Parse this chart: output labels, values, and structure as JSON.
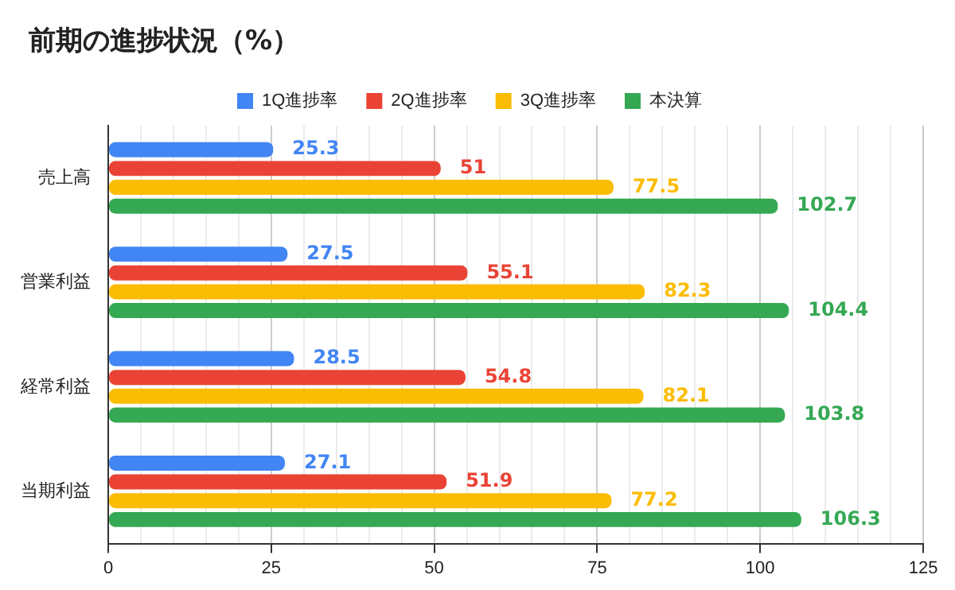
{
  "chart_data": {
    "type": "bar",
    "orientation": "horizontal",
    "title": "前期の進捗状況（%）",
    "categories": [
      "売上高",
      "営業利益",
      "経常利益",
      "当期利益"
    ],
    "series": [
      {
        "name": "1Q進捗率",
        "color": "#4285f4",
        "values": [
          25.3,
          27.5,
          28.5,
          27.1
        ]
      },
      {
        "name": "2Q進捗率",
        "color": "#ea4335",
        "values": [
          51,
          55.1,
          54.8,
          51.9
        ]
      },
      {
        "name": "3Q進捗率",
        "color": "#fbbc04",
        "values": [
          77.5,
          82.3,
          82.1,
          77.2
        ]
      },
      {
        "name": "本決算",
        "color": "#34a853",
        "values": [
          102.7,
          104.4,
          103.8,
          106.3
        ]
      }
    ],
    "xlim": [
      0,
      125
    ],
    "xticks": [
      0,
      {
        "value": 5,
        "label": null
      },
      {
        "value": 10,
        "label": null
      },
      {
        "value": 15,
        "label": null
      },
      {
        "value": 20,
        "label": null
      },
      25,
      {
        "value": 30,
        "label": null
      },
      {
        "value": 35,
        "label": null
      },
      {
        "value": 40,
        "label": null
      },
      {
        "value": 45,
        "label": null
      },
      50,
      {
        "value": 55,
        "label": null
      },
      {
        "value": 60,
        "label": null
      },
      {
        "value": 65,
        "label": null
      },
      {
        "value": 70,
        "label": null
      },
      75,
      {
        "value": 80,
        "label": null
      },
      {
        "value": 85,
        "label": null
      },
      {
        "value": 90,
        "label": null
      },
      {
        "value": 95,
        "label": null
      },
      100,
      {
        "value": 105,
        "label": null
      },
      {
        "value": 110,
        "label": null
      },
      {
        "value": 115,
        "label": null
      },
      {
        "value": 120,
        "label": null
      },
      125
    ],
    "grid": "x",
    "legend": "top",
    "data_labels": true
  }
}
